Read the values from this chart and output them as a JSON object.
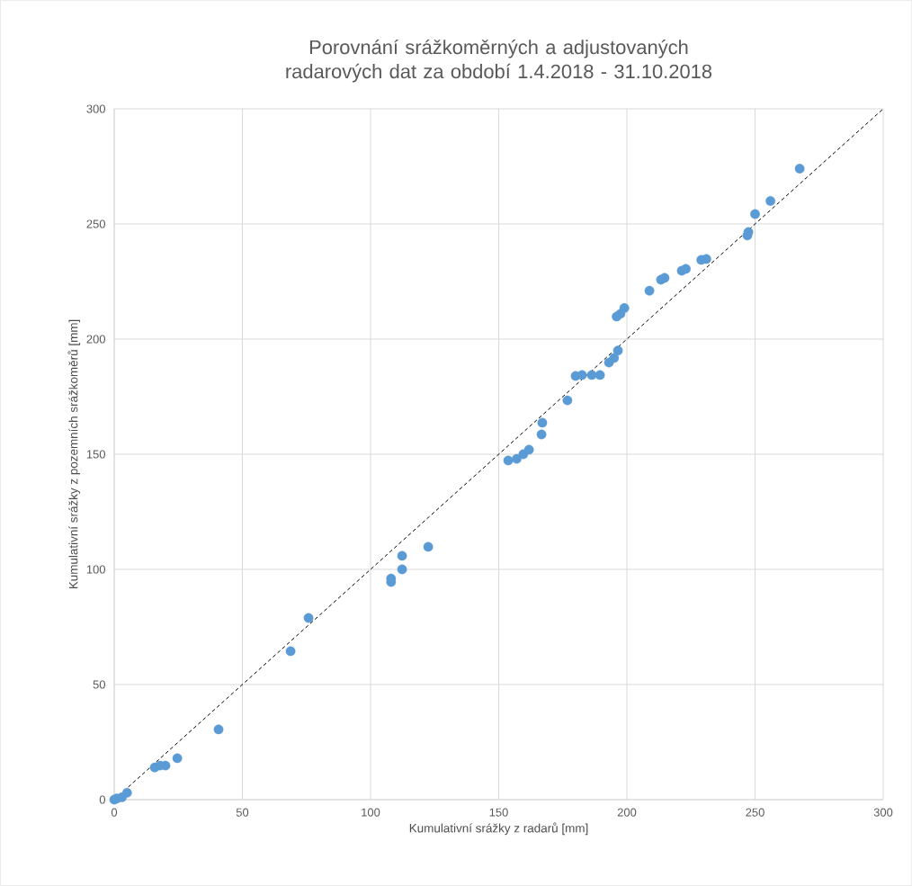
{
  "chart_data": {
    "type": "scatter",
    "title": "Porovnání srážkoměrných a adjustovaných radarových dat za období 1.4.2018 - 31.10.2018",
    "xlabel": "Kumulativní srážky z radarů [mm]",
    "ylabel": "Kumulativní srážky z pozemních srážkoměrů [mm]",
    "xlim": [
      0,
      300
    ],
    "ylim": [
      0,
      300
    ],
    "xticks": [
      0,
      50,
      100,
      150,
      200,
      250,
      300
    ],
    "yticks": [
      0,
      50,
      100,
      150,
      200,
      250,
      300
    ],
    "grid": true,
    "marker": "circle",
    "series": [
      {
        "color": "#5b9bd5",
        "x": [
          0,
          1,
          3,
          5,
          15.8,
          17.9,
          20,
          24.6,
          40.7,
          68.8,
          75.8,
          108,
          108,
          112.3,
          112.3,
          122.5,
          153.7,
          157,
          159.6,
          161.8,
          166.7,
          167,
          176.8,
          180,
          182.5,
          186.3,
          189.5,
          193,
          195,
          196.5,
          196,
          197.5,
          199,
          208.8,
          213.3,
          214.7,
          221.4,
          223,
          229,
          231,
          247,
          247.4,
          250,
          256,
          267.4
        ],
        "values": [
          0,
          0.5,
          1,
          3,
          14,
          14.8,
          14.8,
          18,
          30.5,
          64.5,
          78.9,
          94.5,
          96,
          100,
          105.9,
          109.8,
          147.3,
          148,
          150,
          152,
          158.6,
          163.7,
          173.4,
          184,
          184.4,
          184.4,
          184.4,
          189.8,
          191.8,
          195,
          209.8,
          211,
          213.5,
          221,
          225.8,
          226.6,
          229.7,
          230.5,
          234.4,
          234.8,
          245,
          246.5,
          254.3,
          260,
          274
        ]
      },
      {
        "type": "line",
        "color": "#000000",
        "line_style": "dashed",
        "marker": "none",
        "x": [
          0,
          300
        ],
        "values": [
          0,
          300
        ]
      }
    ]
  }
}
